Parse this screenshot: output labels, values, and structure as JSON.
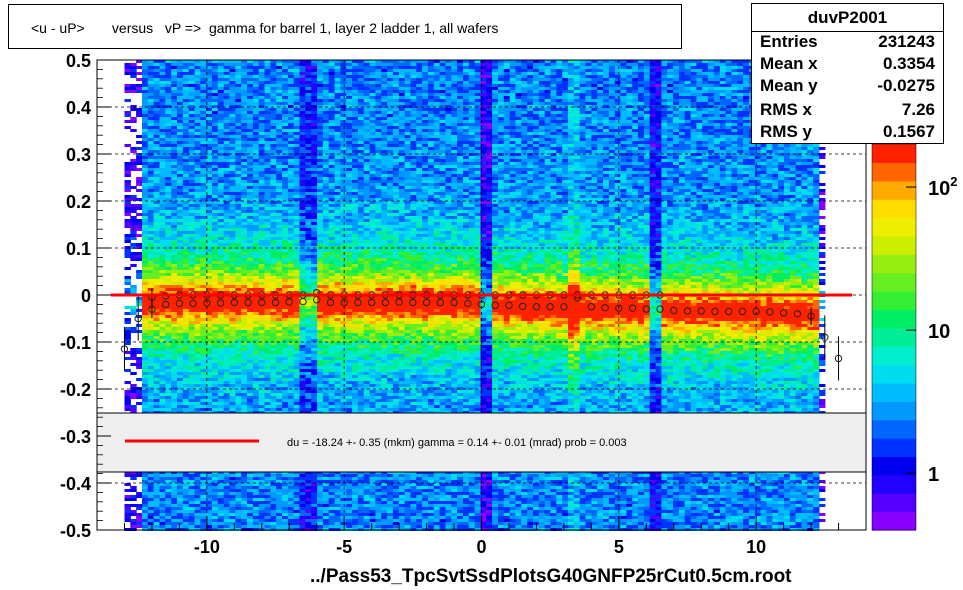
{
  "title": "<u - uP>       versus   vP =>  gamma for barrel 1, layer 2 ladder 1, all wafers",
  "stats": {
    "name": "duvP2001",
    "rows": [
      {
        "label": "Entries",
        "value": "231243"
      },
      {
        "label": "Mean x",
        "value": "0.3354"
      },
      {
        "label": "Mean y",
        "value": "-0.0275"
      },
      {
        "label": "RMS x",
        "value": "7.26"
      },
      {
        "label": "RMS y",
        "value": "0.1567"
      }
    ]
  },
  "footer": "../Pass53_TpcSvtSsdPlotsG40GNFP25rCut0.5cm.root",
  "fit_text": "du =  -18.24 +-  0.35 (mkm) gamma =    0.14 +-  0.01 (mrad) prob = 0.003",
  "colors": {
    "fit_line": "#ff0000",
    "fill_box": "#eeeeee",
    "palette": [
      "#8800ff",
      "#5500ff",
      "#2200ff",
      "#0000ee",
      "#0033ff",
      "#0066ff",
      "#0099ff",
      "#00bbff",
      "#00ddee",
      "#00eecc",
      "#00ee99",
      "#00ee66",
      "#33ee33",
      "#66ee22",
      "#99ee11",
      "#ccee00",
      "#eeee00",
      "#ffdd00",
      "#ffaa00",
      "#ff6600",
      "#ff2200"
    ]
  },
  "chart_data": {
    "type": "heatmap",
    "xlim": [
      -14,
      14
    ],
    "ylim": [
      -0.5,
      0.5
    ],
    "x_ticks": [
      -10,
      -5,
      0,
      5,
      10
    ],
    "x_tick_labels": [
      "-10",
      "-5",
      "0",
      "5",
      "10"
    ],
    "y_ticks": [
      -0.5,
      -0.4,
      -0.3,
      -0.2,
      -0.1,
      0,
      0.1,
      0.2,
      0.3,
      0.4,
      0.5
    ],
    "y_tick_labels": [
      "-0.5",
      "-0.4",
      "-0.3",
      "-0.2",
      "-0.1",
      "0",
      "0.1",
      "0.2",
      "0.3",
      "0.4",
      "0.5"
    ],
    "grid": true,
    "colorbar": {
      "scale": "log",
      "labels": [
        "1",
        "10",
        "10^2"
      ],
      "values": [
        1,
        10,
        100
      ]
    },
    "fit_line": {
      "x": [
        -13.5,
        13.5
      ],
      "y": [
        0.0,
        0.0
      ]
    },
    "profile_upper": {
      "x": [
        -12.0,
        -11.5,
        -11.0,
        -10.5,
        -10.0,
        -9.5,
        -9.0,
        -8.5,
        -8.0,
        -7.5,
        -7.0,
        -6.5,
        -6.0,
        -5.5,
        -5.0,
        -4.5,
        -4.0,
        -3.5,
        -3.0,
        -2.5,
        -2.0,
        -1.5,
        -1.0,
        -0.5,
        0.0,
        0.5,
        1.0,
        1.5,
        2.0,
        2.5,
        3.0,
        3.5,
        4.0,
        4.5,
        5.0,
        5.5,
        6.0,
        6.5
      ],
      "y": [
        -0.005,
        -0.002,
        0.0,
        0.0,
        0.0,
        0.0,
        0.0,
        0.0,
        0.0,
        0.0,
        0.0,
        0.0,
        0.005,
        0.0,
        0.0,
        0.0,
        0.0,
        0.0,
        0.0,
        0.0,
        0.0,
        0.0,
        0.0,
        0.0,
        0.0,
        0.0,
        0.0,
        0.0,
        0.0,
        0.0,
        0.0,
        0.0,
        0.0,
        0.0,
        0.0,
        0.0,
        0.0,
        0.0
      ]
    },
    "profile_lower": {
      "x": [
        -13.0,
        -12.5,
        -12.0,
        -11.5,
        -11.0,
        -10.5,
        -10.0,
        -9.5,
        -9.0,
        -8.5,
        -8.0,
        -7.5,
        -7.0,
        -6.5,
        -6.0,
        -5.5,
        -5.0,
        -4.5,
        -4.0,
        -3.5,
        -3.0,
        -2.5,
        -2.0,
        -1.5,
        -1.0,
        -0.5,
        0.0,
        0.5,
        1.0,
        1.5,
        2.0,
        2.5,
        3.0,
        3.5,
        4.0,
        4.5,
        5.0,
        5.5,
        6.0,
        6.5,
        7.0,
        7.5,
        8.0,
        8.5,
        9.0,
        9.5,
        10.0,
        10.5,
        11.0,
        11.5,
        12.0,
        12.5,
        13.0
      ],
      "y": [
        -0.115,
        -0.05,
        -0.03,
        -0.02,
        -0.018,
        -0.018,
        -0.017,
        -0.017,
        -0.016,
        -0.016,
        -0.016,
        -0.016,
        -0.015,
        -0.014,
        -0.01,
        -0.016,
        -0.016,
        -0.016,
        -0.016,
        -0.016,
        -0.015,
        -0.016,
        -0.016,
        -0.016,
        -0.016,
        -0.018,
        -0.02,
        -0.022,
        -0.022,
        -0.024,
        -0.025,
        -0.025,
        -0.025,
        -0.006,
        -0.025,
        -0.027,
        -0.028,
        -0.028,
        -0.03,
        -0.03,
        -0.033,
        -0.034,
        -0.034,
        -0.035,
        -0.035,
        -0.035,
        -0.035,
        -0.036,
        -0.038,
        -0.04,
        -0.045,
        -0.09,
        -0.135
      ]
    }
  }
}
